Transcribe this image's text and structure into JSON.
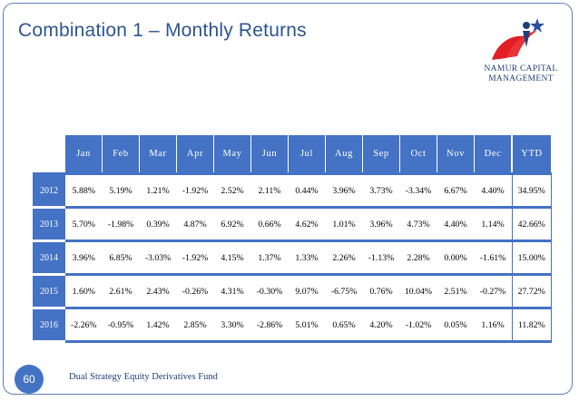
{
  "slide": {
    "title": "Combination 1 – Monthly Returns",
    "page_number": "60",
    "footer": "Dual Strategy Equity Derivatives Fund"
  },
  "logo": {
    "line1": "NAMUR CAPITAL",
    "line2": "MANAGEMENT",
    "colors": {
      "star": "#2e4f9e",
      "swoosh": "#e31e24",
      "figure": "#1f3f7a"
    }
  },
  "table": {
    "headers": [
      "Jan",
      "Feb",
      "Mar",
      "Apr",
      "May",
      "Jun",
      "Jul",
      "Aug",
      "Sep",
      "Oct",
      "Nov",
      "Dec",
      "YTD"
    ],
    "rows": [
      {
        "year": "2012",
        "values": [
          "5.88%",
          "5.19%",
          "1.21%",
          "-1.92%",
          "2.52%",
          "2.11%",
          "0.44%",
          "3.96%",
          "3.73%",
          "-3.34%",
          "6.67%",
          "4.40%",
          "34.95%"
        ]
      },
      {
        "year": "2013",
        "values": [
          "5.70%",
          "-1.98%",
          "0.39%",
          "4.87%",
          "6.92%",
          "0.66%",
          "4.62%",
          "1.01%",
          "3.96%",
          "4.73%",
          "4.40%",
          "1.14%",
          "42.66%"
        ]
      },
      {
        "year": "2014",
        "values": [
          "3.96%",
          "6.85%",
          "-3.03%",
          "-1.92%",
          "4.15%",
          "1.37%",
          "1.33%",
          "2.26%",
          "-1.13%",
          "2.28%",
          "0.00%",
          "-1.61%",
          "15.00%"
        ]
      },
      {
        "year": "2015",
        "values": [
          "1.60%",
          "2.61%",
          "2.43%",
          "-0.26%",
          "4.31%",
          "-0.30%",
          "9.07%",
          "-6.75%",
          "0.76%",
          "10.04%",
          "2.51%",
          "-0.27%",
          "27.72%"
        ]
      },
      {
        "year": "2016",
        "values": [
          "-2.26%",
          "-0.95%",
          "1.42%",
          "2.85%",
          "3.30%",
          "-2.86%",
          "5.01%",
          "0.65%",
          "4.20%",
          "-1.02%",
          "0.05%",
          "1.16%",
          "11.82%"
        ]
      }
    ],
    "colors": {
      "header_bg": "#4472c4",
      "header_text": "#ffffff",
      "border": "#4472c4"
    }
  }
}
